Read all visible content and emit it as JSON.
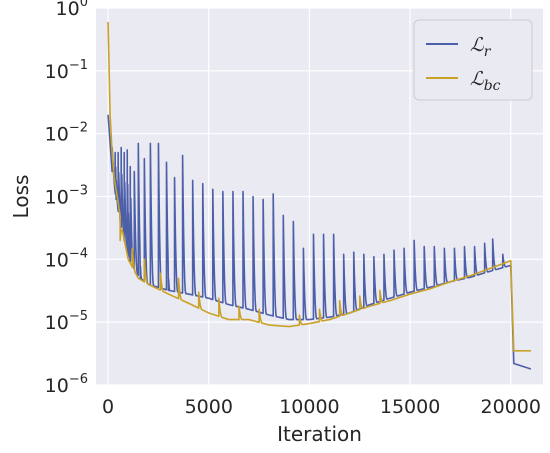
{
  "chart_data": {
    "type": "line",
    "xlabel": "Iteration",
    "ylabel": "Loss",
    "xlim": [
      -600,
      21600
    ],
    "ylim_log10": [
      -6,
      0
    ],
    "yscale": "log",
    "grid": true,
    "legend_position": "top-right",
    "xticks": [
      "0",
      "5000",
      "10000",
      "15000",
      "20000"
    ],
    "yticks": [
      {
        "base": "10",
        "exp": "0"
      },
      {
        "base": "10",
        "exp": "−1"
      },
      {
        "base": "10",
        "exp": "−2"
      },
      {
        "base": "10",
        "exp": "−3"
      },
      {
        "base": "10",
        "exp": "−4"
      },
      {
        "base": "10",
        "exp": "−5"
      },
      {
        "base": "10",
        "exp": "−6"
      }
    ],
    "legend": [
      {
        "base": "ℒ",
        "sub": "r",
        "color": "#4c5fa8"
      },
      {
        "base": "ℒ",
        "sub": "bc",
        "color": "#c9a227"
      }
    ],
    "series": [
      {
        "name": "ℒ_r",
        "color": "#4c5fa8",
        "baseline": [
          [
            0,
            0.02
          ],
          [
            200,
            0.0025
          ],
          [
            400,
            0.0009
          ],
          [
            600,
            0.0004
          ],
          [
            800,
            0.0002
          ],
          [
            1000,
            0.00011
          ],
          [
            1300,
            7e-05
          ],
          [
            1600,
            5e-05
          ],
          [
            2000,
            4e-05
          ],
          [
            3000,
            3.2e-05
          ],
          [
            4000,
            2.8e-05
          ],
          [
            5000,
            2.4e-05
          ],
          [
            6000,
            1.9e-05
          ],
          [
            7000,
            1.6e-05
          ],
          [
            8000,
            1.3e-05
          ],
          [
            9000,
            1.1e-05
          ],
          [
            10000,
            1.1e-05
          ],
          [
            11000,
            1.2e-05
          ],
          [
            12000,
            1.4e-05
          ],
          [
            13000,
            1.9e-05
          ],
          [
            14000,
            2.4e-05
          ],
          [
            15000,
            3e-05
          ],
          [
            16000,
            3.6e-05
          ],
          [
            17000,
            4.4e-05
          ],
          [
            18000,
            5.2e-05
          ],
          [
            19000,
            6.5e-05
          ],
          [
            20000,
            8e-05
          ]
        ],
        "spikes": [
          [
            200,
            0.006
          ],
          [
            350,
            0.005
          ],
          [
            500,
            0.005
          ],
          [
            650,
            0.006
          ],
          [
            800,
            0.005
          ],
          [
            950,
            0.0055
          ],
          [
            1100,
            0.003
          ],
          [
            1300,
            0.0025
          ],
          [
            1500,
            0.007
          ],
          [
            1800,
            0.004
          ],
          [
            2100,
            0.007
          ],
          [
            2500,
            0.007
          ],
          [
            2900,
            0.0035
          ],
          [
            3300,
            0.002
          ],
          [
            3700,
            0.0045
          ],
          [
            4200,
            0.0018
          ],
          [
            4700,
            0.0016
          ],
          [
            5200,
            0.0013
          ],
          [
            5700,
            0.0012
          ],
          [
            6200,
            0.0012
          ],
          [
            6700,
            0.0012
          ],
          [
            7200,
            0.001
          ],
          [
            7700,
            0.0009
          ],
          [
            8200,
            0.0011
          ],
          [
            8700,
            0.0005
          ],
          [
            9200,
            0.0004
          ],
          [
            9700,
            0.00015
          ],
          [
            10200,
            0.00025
          ],
          [
            10700,
            0.00025
          ],
          [
            11200,
            0.00025
          ],
          [
            11700,
            0.00012
          ],
          [
            12200,
            0.00013
          ],
          [
            12700,
            0.00012
          ],
          [
            13200,
            0.00011
          ],
          [
            13700,
            0.00012
          ],
          [
            14200,
            0.00014
          ],
          [
            14700,
            0.00015
          ],
          [
            15200,
            0.0002
          ],
          [
            15700,
            0.00016
          ],
          [
            16200,
            0.00016
          ],
          [
            16700,
            0.00015
          ],
          [
            17200,
            0.00015
          ],
          [
            17700,
            0.00016
          ],
          [
            18200,
            0.00016
          ],
          [
            18700,
            0.00018
          ],
          [
            19100,
            0.00021
          ],
          [
            19600,
            0.00012
          ]
        ],
        "tail": [
          [
            20000,
            8e-05
          ],
          [
            20150,
            2.2e-06
          ],
          [
            21000,
            1.8e-06
          ]
        ]
      },
      {
        "name": "ℒ_bc",
        "color": "#c9a227",
        "points": [
          [
            0,
            0.6
          ],
          [
            100,
            0.02
          ],
          [
            200,
            0.005
          ],
          [
            300,
            0.002
          ],
          [
            500,
            0.0008
          ],
          [
            700,
            0.0003
          ],
          [
            1000,
            0.0001
          ],
          [
            1500,
            5e-05
          ],
          [
            2000,
            4e-05
          ],
          [
            3000,
            2.8e-05
          ],
          [
            4000,
            2e-05
          ],
          [
            5000,
            1.4e-05
          ],
          [
            6000,
            1.1e-05
          ],
          [
            7000,
            1.1e-05
          ],
          [
            8000,
            9e-06
          ],
          [
            9000,
            8.5e-06
          ],
          [
            10000,
            9.5e-06
          ],
          [
            11000,
            1.1e-05
          ],
          [
            12000,
            1.4e-05
          ],
          [
            13000,
            1.8e-05
          ],
          [
            14000,
            2.2e-05
          ],
          [
            15000,
            2.8e-05
          ],
          [
            16000,
            3.4e-05
          ],
          [
            17000,
            4.4e-05
          ],
          [
            18000,
            5.5e-05
          ],
          [
            19000,
            7.2e-05
          ],
          [
            20000,
            9.5e-05
          ],
          [
            20150,
            3.5e-06
          ],
          [
            21000,
            3.5e-06
          ]
        ],
        "spikes": [
          [
            600,
            0.0002
          ],
          [
            1200,
            0.00015
          ],
          [
            1800,
            0.0001
          ],
          [
            2600,
            6e-05
          ],
          [
            3500,
            5e-05
          ],
          [
            4500,
            3e-05
          ],
          [
            5500,
            2.4e-05
          ],
          [
            6500,
            1.8e-05
          ],
          [
            7500,
            1.6e-05
          ],
          [
            9500,
            1.3e-05
          ],
          [
            10500,
            1.6e-05
          ],
          [
            11500,
            2.2e-05
          ],
          [
            12500,
            2.6e-05
          ],
          [
            13500,
            3.2e-05
          ]
        ]
      }
    ]
  }
}
